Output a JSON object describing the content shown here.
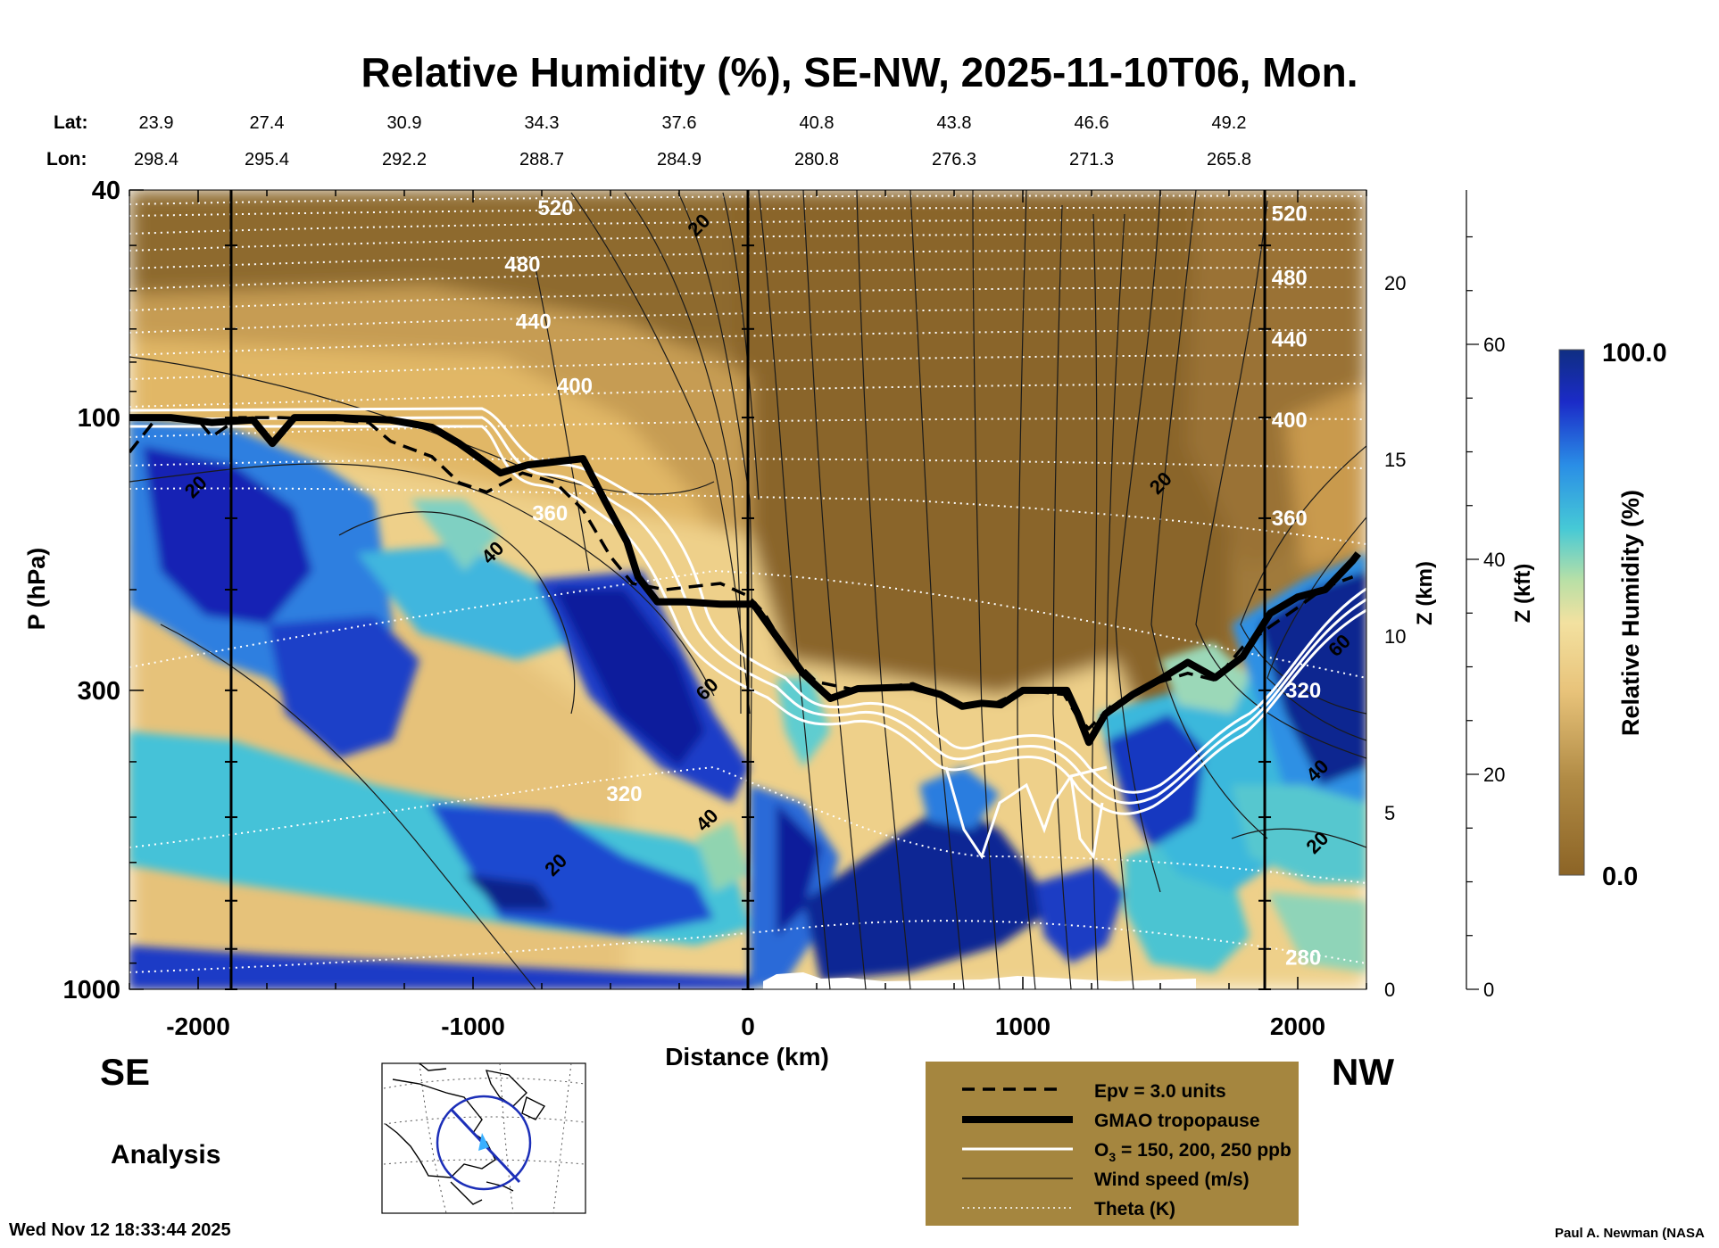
{
  "chart_data": {
    "type": "heatmap",
    "title": "Relative Humidity (%), SE-NW, 2025-11-10T06, Mon.",
    "variable": "Relative Humidity (%)",
    "xlabel": "Distance (km)",
    "ylabel": "P (hPa)",
    "xlim": [
      -2250,
      2250
    ],
    "ylim_hpa": [
      1000,
      40
    ],
    "x_ticks": [
      {
        "v": -2000,
        "label": "-2000"
      },
      {
        "v": -1000,
        "label": "-1000"
      },
      {
        "v": 0,
        "label": "0"
      },
      {
        "v": 1000,
        "label": "1000"
      },
      {
        "v": 2000,
        "label": "2000"
      }
    ],
    "y_ticks": [
      {
        "v": 40,
        "label": "40"
      },
      {
        "v": 100,
        "label": "100"
      },
      {
        "v": 300,
        "label": "300"
      },
      {
        "v": 1000,
        "label": "1000"
      }
    ],
    "z_km_axis": {
      "label": "Z (km)",
      "ticks": [
        {
          "v": 0,
          "label": "0"
        },
        {
          "v": 5,
          "label": "5"
        },
        {
          "v": 10,
          "label": "10"
        },
        {
          "v": 15,
          "label": "15"
        },
        {
          "v": 20,
          "label": "20"
        }
      ]
    },
    "z_kft_axis": {
      "label": "Z (kft)",
      "ticks": [
        {
          "v": 0,
          "label": "0"
        },
        {
          "v": 20,
          "label": "20"
        },
        {
          "v": 40,
          "label": "40"
        },
        {
          "v": 60,
          "label": "60"
        }
      ]
    },
    "lat_label": "Lat:",
    "lon_label": "Lon:",
    "coords": [
      {
        "x": -2250,
        "lat": "23.9",
        "lon": "298.4"
      },
      {
        "x": -1750,
        "lat": "27.4",
        "lon": "295.4"
      },
      {
        "x": -1250,
        "lat": "30.9",
        "lon": "292.2"
      },
      {
        "x": -750,
        "lat": "34.3",
        "lon": "288.7"
      },
      {
        "x": -250,
        "lat": "37.6",
        "lon": "284.9"
      },
      {
        "x": 250,
        "lat": "40.8",
        "lon": "280.8"
      },
      {
        "x": 750,
        "lat": "43.8",
        "lon": "276.3"
      },
      {
        "x": 1250,
        "lat": "46.6",
        "lon": "271.3"
      },
      {
        "x": 1750,
        "lat": "49.2",
        "lon": "265.8"
      }
    ],
    "vertical_markers_km": [
      -1880,
      0,
      1880
    ],
    "colorbar": {
      "label": "Relative Humidity (%)",
      "min": 0,
      "max": 100,
      "min_label": "0.0",
      "max_label": "100.0"
    },
    "tropopause_hpa": [
      [
        -2250,
        100
      ],
      [
        -2100,
        100
      ],
      [
        -1950,
        102
      ],
      [
        -1800,
        101
      ],
      [
        -1730,
        111
      ],
      [
        -1650,
        100
      ],
      [
        -1500,
        100
      ],
      [
        -1300,
        101
      ],
      [
        -1150,
        104
      ],
      [
        -1050,
        111
      ],
      [
        -900,
        125
      ],
      [
        -800,
        121
      ],
      [
        -600,
        118
      ],
      [
        -520,
        140
      ],
      [
        -440,
        165
      ],
      [
        -400,
        190
      ],
      [
        -330,
        210
      ],
      [
        -230,
        210
      ],
      [
        -100,
        212
      ],
      [
        20,
        212
      ],
      [
        100,
        240
      ],
      [
        200,
        280
      ],
      [
        300,
        310
      ],
      [
        400,
        298
      ],
      [
        600,
        296
      ],
      [
        700,
        305
      ],
      [
        780,
        320
      ],
      [
        850,
        316
      ],
      [
        920,
        318
      ],
      [
        1000,
        300
      ],
      [
        1100,
        300
      ],
      [
        1160,
        300
      ],
      [
        1200,
        330
      ],
      [
        1240,
        370
      ],
      [
        1300,
        330
      ],
      [
        1400,
        305
      ],
      [
        1500,
        287
      ],
      [
        1600,
        268
      ],
      [
        1700,
        285
      ],
      [
        1800,
        262
      ],
      [
        1900,
        220
      ],
      [
        2000,
        206
      ],
      [
        2100,
        200
      ],
      [
        2200,
        178
      ],
      [
        2220,
        173
      ]
    ],
    "epv_3pvu_hpa": [
      [
        -2250,
        115
      ],
      [
        -2150,
        100
      ],
      [
        -2000,
        101
      ],
      [
        -1950,
        108
      ],
      [
        -1850,
        100
      ],
      [
        -1700,
        100
      ],
      [
        -1500,
        101
      ],
      [
        -1380,
        102
      ],
      [
        -1300,
        110
      ],
      [
        -1150,
        117
      ],
      [
        -1050,
        130
      ],
      [
        -950,
        135
      ],
      [
        -820,
        125
      ],
      [
        -700,
        130
      ],
      [
        -600,
        145
      ],
      [
        -500,
        175
      ],
      [
        -420,
        195
      ],
      [
        -300,
        200
      ],
      [
        -100,
        195
      ],
      [
        0,
        205
      ],
      [
        60,
        220
      ],
      [
        150,
        260
      ],
      [
        250,
        290
      ],
      [
        400,
        300
      ],
      [
        600,
        292
      ],
      [
        700,
        305
      ],
      [
        780,
        322
      ],
      [
        900,
        316
      ],
      [
        1000,
        300
      ],
      [
        1150,
        305
      ],
      [
        1200,
        335
      ],
      [
        1240,
        350
      ],
      [
        1320,
        320
      ],
      [
        1450,
        295
      ],
      [
        1600,
        280
      ],
      [
        1700,
        288
      ],
      [
        1800,
        252
      ],
      [
        1900,
        232
      ],
      [
        2000,
        215
      ],
      [
        2100,
        198
      ],
      [
        2200,
        190
      ]
    ],
    "ozone_ppb_contours": [
      150,
      200,
      250
    ],
    "theta_labels": [
      {
        "x": -700,
        "p": 43,
        "label": "520"
      },
      {
        "x": -820,
        "p": 54,
        "label": "480"
      },
      {
        "x": -780,
        "p": 68,
        "label": "440"
      },
      {
        "x": -630,
        "p": 88,
        "label": "400"
      },
      {
        "x": -720,
        "p": 147,
        "label": "360"
      },
      {
        "x": -450,
        "p": 455,
        "label": "320"
      },
      {
        "x": 1970,
        "p": 44,
        "label": "520"
      },
      {
        "x": 1970,
        "p": 57,
        "label": "480"
      },
      {
        "x": 1970,
        "p": 73,
        "label": "440"
      },
      {
        "x": 1970,
        "p": 101,
        "label": "400"
      },
      {
        "x": 1970,
        "p": 150,
        "label": "360"
      },
      {
        "x": 2020,
        "p": 300,
        "label": "320"
      },
      {
        "x": 2020,
        "p": 880,
        "label": "280"
      }
    ],
    "wind_labels": [
      {
        "x": -2010,
        "p": 132,
        "label": "20"
      },
      {
        "x": -930,
        "p": 172,
        "label": "40"
      },
      {
        "x": -180,
        "p": 46,
        "label": "20"
      },
      {
        "x": -150,
        "p": 298,
        "label": "60"
      },
      {
        "x": -150,
        "p": 505,
        "label": "40"
      },
      {
        "x": -700,
        "p": 605,
        "label": "20"
      },
      {
        "x": 1500,
        "p": 130,
        "label": "20"
      },
      {
        "x": 2150,
        "p": 250,
        "label": "60"
      },
      {
        "x": 2070,
        "p": 414,
        "label": "40"
      },
      {
        "x": 2070,
        "p": 553,
        "label": "20"
      }
    ]
  },
  "panel": {
    "left_label": "SE",
    "right_label": "NW",
    "analysis_label": "Analysis",
    "timestamp": "Wed Nov 12 18:33:44 2025",
    "credit": "Paul A. Newman (NASA"
  },
  "legend": {
    "background_color": "#a5863f",
    "items": [
      {
        "label": "Epv = 3.0 units",
        "style": "dashed"
      },
      {
        "label": "GMAO tropopause",
        "style": "thick"
      },
      {
        "label_main": "O",
        "label_sub": "3",
        "label_rest": " = 150, 200, 250 ppb",
        "style": "white"
      },
      {
        "label": "Wind speed (m/s)",
        "style": "thin"
      },
      {
        "label": "Theta (K)",
        "style": "dotted"
      }
    ]
  }
}
